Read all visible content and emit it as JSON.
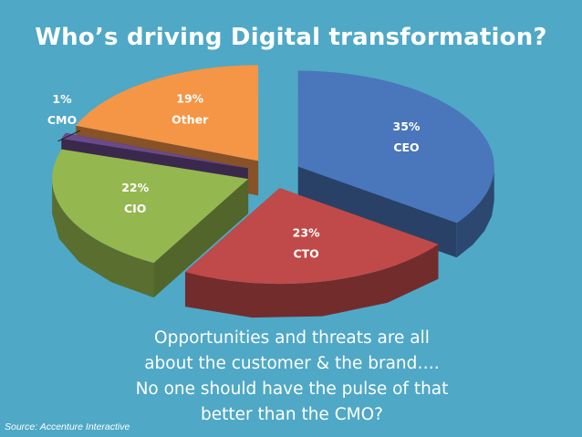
{
  "slide": {
    "title": "Who’s driving Digital transformation?",
    "callout_lines": [
      "Opportunities and threats are all",
      "about the customer & the brand….",
      "No one should have the pulse of that",
      "better than the CMO?"
    ],
    "source": "Source: Accenture Interactive"
  },
  "colors": {
    "background": "#4fa8c6",
    "CEO": "#4a76bb",
    "CTO": "#c04a49",
    "CIO": "#95b74f",
    "CMO": "#6a4a8c",
    "Other": "#f59546"
  },
  "chart_data": {
    "type": "pie",
    "title": "",
    "exploded": true,
    "style": "3d",
    "slices": [
      {
        "name": "CEO",
        "value": 35,
        "label": "35%"
      },
      {
        "name": "CTO",
        "value": 23,
        "label": "23%"
      },
      {
        "name": "CIO",
        "value": 22,
        "label": "22%"
      },
      {
        "name": "CMO",
        "value": 1,
        "label": "1%"
      },
      {
        "name": "Other",
        "value": 19,
        "label": "19%"
      }
    ]
  }
}
